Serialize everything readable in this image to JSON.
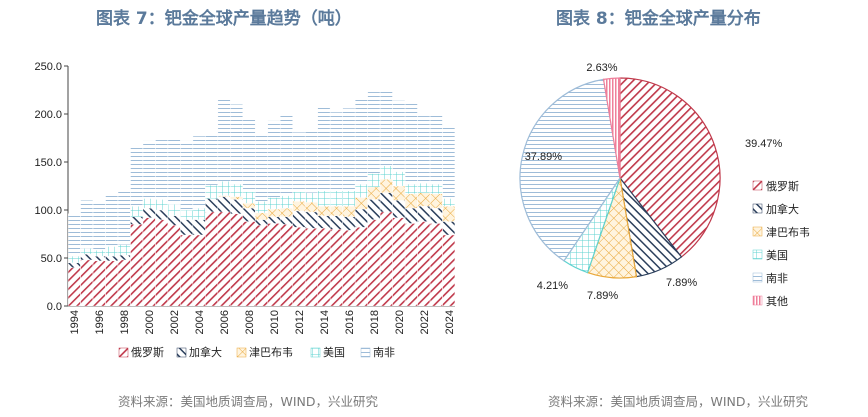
{
  "left_title": "图表 7：钯金全球产量趋势（吨）",
  "right_title": "图表 8：钯金全球产量分布",
  "left_source": "资料来源：美国地质调查局，WIND，兴业研究",
  "right_source": "资料来源：美国地质调查局，WIND，兴业研究",
  "chart_data": [
    {
      "type": "bar",
      "title": "图表 7：钯金全球产量趋势（吨）",
      "stacked": true,
      "ylim": [
        0,
        250
      ],
      "yticks": [
        "0.0",
        "50.0",
        "100.0",
        "150.0",
        "200.0",
        "250.0"
      ],
      "categories": [
        "1994",
        "1995",
        "1996",
        "1997",
        "1998",
        "1999",
        "2000",
        "2001",
        "2002",
        "2003",
        "2004",
        "2005",
        "2006",
        "2007",
        "2008",
        "2009",
        "2010",
        "2011",
        "2012",
        "2013",
        "2014",
        "2015",
        "2016",
        "2017",
        "2018",
        "2019",
        "2020",
        "2021",
        "2022",
        "2023",
        "2024"
      ],
      "xtick_labels": [
        "1994",
        "1996",
        "1998",
        "2000",
        "2002",
        "2004",
        "2006",
        "2008",
        "2010",
        "2012",
        "2014",
        "2016",
        "2018",
        "2020",
        "2022",
        "2024"
      ],
      "legend_position": "bottom",
      "series": [
        {
          "name": "俄罗斯",
          "color": "#c0394b",
          "values": [
            40,
            48,
            47,
            47,
            48,
            85,
            92,
            90,
            84,
            74,
            74,
            98,
            98,
            96,
            88,
            84,
            86,
            85,
            82,
            81,
            81,
            80,
            79,
            82,
            90,
            98,
            92,
            86,
            88,
            86,
            74
          ]
        },
        {
          "name": "加拿大",
          "color": "#2b3f5c",
          "values": [
            5,
            6,
            5,
            5,
            5,
            8,
            10,
            10,
            10,
            16,
            16,
            14,
            16,
            15,
            14,
            6,
            7,
            8,
            17,
            17,
            13,
            14,
            14,
            19,
            21,
            20,
            18,
            16,
            16,
            16,
            14
          ]
        },
        {
          "name": "津巴布韦",
          "color": "#e9a83b",
          "values": [
            0,
            0,
            0,
            0,
            0,
            0,
            0,
            0,
            0,
            0,
            0,
            0,
            1,
            3,
            5,
            7,
            8,
            9,
            10,
            10,
            10,
            10,
            11,
            12,
            13,
            14,
            15,
            15,
            14,
            15,
            16
          ]
        },
        {
          "name": "美国",
          "color": "#5fd3d0",
          "values": [
            7,
            6,
            6,
            10,
            11,
            11,
            10,
            11,
            12,
            10,
            12,
            14,
            15,
            13,
            12,
            12,
            12,
            13,
            10,
            10,
            16,
            16,
            16,
            14,
            14,
            14,
            15,
            10,
            10,
            10,
            8
          ]
        },
        {
          "name": "南非",
          "color": "#9ebcd8",
          "values": [
            44,
            50,
            50,
            55,
            55,
            61,
            60,
            62,
            68,
            72,
            75,
            52,
            85,
            83,
            76,
            70,
            80,
            86,
            62,
            66,
            88,
            82,
            86,
            90,
            85,
            78,
            74,
            84,
            70,
            73,
            74
          ]
        }
      ]
    },
    {
      "type": "pie",
      "title": "图表 8：钯金全球产量分布",
      "legend_position": "right",
      "slices": [
        {
          "name": "俄罗斯",
          "value": 39.47,
          "label": "39.47%",
          "color": "#c0394b"
        },
        {
          "name": "加拿大",
          "value": 7.89,
          "label": "7.89%",
          "color": "#2b3f5c"
        },
        {
          "name": "津巴布韦",
          "value": 7.89,
          "label": "7.89%",
          "color": "#e9a83b"
        },
        {
          "name": "美国",
          "value": 4.21,
          "label": "4.21%",
          "color": "#5fd3d0"
        },
        {
          "name": "南非",
          "value": 37.89,
          "label": "37.89%",
          "color": "#9ebcd8"
        },
        {
          "name": "其他",
          "value": 2.63,
          "label": "2.63%",
          "color": "#ef7f9a"
        }
      ]
    }
  ]
}
